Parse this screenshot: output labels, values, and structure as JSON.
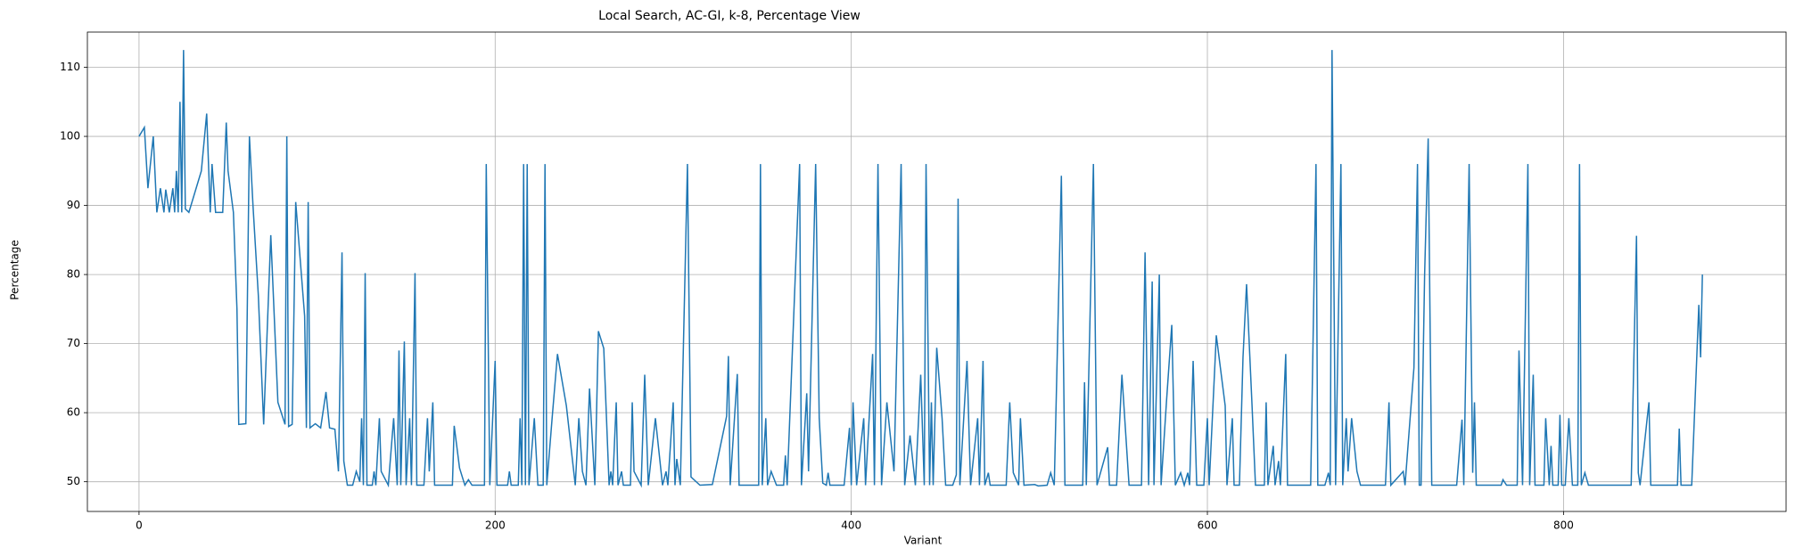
{
  "chart_data": {
    "type": "line",
    "title": "Local Search, AC-GI, k-8, Percentage View",
    "x_label": "Variant",
    "y_label": "Percentage",
    "xlim": [
      -29,
      925
    ],
    "ylim": [
      45.7,
      115.1
    ],
    "xticks": [
      0,
      200,
      400,
      600,
      800
    ],
    "yticks": [
      50,
      60,
      70,
      80,
      90,
      100,
      110
    ],
    "grid": true,
    "series": [
      {
        "color": "#1f77b4",
        "x": [
          0,
          3,
          5,
          8,
          10,
          12,
          14,
          15,
          17,
          19,
          20,
          21,
          22,
          23,
          24,
          25,
          26,
          28,
          35,
          38,
          40,
          41,
          43,
          47,
          49,
          50,
          53,
          55,
          56,
          60,
          62,
          64,
          67,
          70,
          74,
          78,
          82,
          83,
          84,
          86,
          88,
          93,
          94,
          95,
          96,
          99,
          102,
          105,
          107,
          110,
          112,
          114,
          115,
          117,
          120,
          122,
          124,
          125,
          126,
          127,
          128,
          131,
          132,
          133,
          135,
          136,
          140,
          143,
          145,
          146,
          147,
          149,
          150,
          152,
          153,
          155,
          156,
          160,
          162,
          163,
          165,
          166,
          170,
          176,
          177,
          180,
          183,
          185,
          187,
          194,
          195,
          197,
          200,
          201,
          207,
          208,
          209,
          213,
          214,
          215,
          216,
          217,
          218,
          219,
          222,
          224,
          227,
          228,
          229,
          232,
          235,
          240,
          245,
          247,
          249,
          251,
          253,
          256,
          258,
          261,
          264,
          265,
          266,
          268,
          269,
          271,
          272,
          276,
          277,
          278,
          282,
          284,
          286,
          290,
          294,
          296,
          297,
          300,
          301,
          302,
          304,
          308,
          310,
          315,
          322,
          330,
          331,
          332,
          336,
          337,
          348,
          349,
          350,
          352,
          353,
          355,
          358,
          362,
          363,
          364,
          371,
          372,
          375,
          376,
          380,
          382,
          384,
          386,
          387,
          388,
          396,
          399,
          400,
          401,
          403,
          407,
          408,
          412,
          413,
          415,
          417,
          420,
          424,
          428,
          430,
          433,
          436,
          439,
          441,
          442,
          444,
          445,
          446,
          448,
          451,
          453,
          457,
          459,
          460,
          461,
          465,
          467,
          471,
          472,
          474,
          475,
          477,
          478,
          487,
          489,
          491,
          494,
          495,
          497,
          503,
          505,
          510,
          512,
          514,
          518,
          520,
          530,
          531,
          532,
          536,
          538,
          544,
          545,
          549,
          552,
          556,
          563,
          565,
          567,
          569,
          570,
          573,
          574,
          577,
          580,
          582,
          585,
          587,
          589,
          590,
          592,
          594,
          598,
          600,
          601,
          605,
          610,
          611,
          614,
          615,
          618,
          620,
          622,
          625,
          627,
          632,
          633,
          634,
          637,
          638,
          640,
          641,
          644,
          645,
          658,
          661,
          662,
          666,
          668,
          669,
          670,
          672,
          675,
          676,
          678,
          679,
          681,
          684,
          686,
          700,
          702,
          703,
          710,
          711,
          716,
          718,
          719,
          720,
          722,
          724,
          726,
          740,
          743,
          744,
          747,
          749,
          750,
          751,
          765,
          766,
          768,
          774,
          775,
          777,
          780,
          781,
          783,
          784,
          789,
          790,
          792,
          793,
          794,
          797,
          798,
          799,
          801,
          803,
          805,
          808,
          809,
          810,
          812,
          814,
          838,
          841,
          842,
          843,
          847,
          848,
          849,
          864,
          865,
          866,
          872,
          876,
          877,
          878
        ],
        "values": [
          100,
          101.3,
          92.5,
          100,
          89,
          92.5,
          89,
          92.3,
          89,
          92.5,
          89,
          95,
          89,
          105,
          89,
          112.5,
          89.5,
          89,
          95,
          103.3,
          89,
          96,
          89,
          89,
          102,
          95,
          89,
          75,
          58.3,
          58.4,
          100,
          90,
          77,
          58.3,
          85.7,
          61.5,
          58.3,
          100,
          58,
          58.3,
          90.5,
          74,
          57.8,
          90.5,
          57.8,
          58.4,
          57.8,
          63,
          57.8,
          57.6,
          51.5,
          83.2,
          53,
          49.5,
          49.5,
          51.5,
          50,
          59.2,
          49.5,
          80.2,
          49.5,
          49.5,
          51.5,
          49.5,
          59.2,
          51.5,
          49.5,
          59.2,
          49.5,
          69,
          49.5,
          70.3,
          49.5,
          59.2,
          49.5,
          80.2,
          49.5,
          49.5,
          59.2,
          51.5,
          61.5,
          49.5,
          49.5,
          49.5,
          58.1,
          52,
          49.5,
          50.3,
          49.5,
          49.5,
          96,
          49.5,
          67.5,
          49.5,
          49.5,
          51.5,
          49.5,
          49.5,
          59.2,
          49.5,
          96,
          49.5,
          96,
          49.5,
          59.2,
          49.5,
          49.5,
          96,
          49.5,
          59.2,
          68.5,
          61,
          49.5,
          59.2,
          51.5,
          49.5,
          63.5,
          49.5,
          71.8,
          69.3,
          49.5,
          51.5,
          49.5,
          61.5,
          49.5,
          51.5,
          49.5,
          49.5,
          61.5,
          51.5,
          49.5,
          65.5,
          49.5,
          59.2,
          49.5,
          51.5,
          49.5,
          61.5,
          49.5,
          53.3,
          49.5,
          96,
          50.7,
          49.5,
          49.6,
          59.5,
          68.2,
          49.5,
          65.6,
          49.5,
          49.5,
          96,
          49.5,
          59.2,
          49.5,
          51.5,
          49.5,
          49.5,
          53.8,
          49.5,
          96,
          49.5,
          62.8,
          51.5,
          96,
          59.2,
          49.8,
          49.5,
          51.3,
          49.5,
          49.5,
          57.8,
          49.5,
          61.5,
          49.5,
          59.2,
          49.5,
          68.5,
          49.5,
          96,
          49.5,
          61.5,
          51.5,
          96,
          49.5,
          56.7,
          49.5,
          65.5,
          49.5,
          96,
          49.5,
          61.5,
          49.5,
          69.4,
          59.2,
          49.5,
          49.5,
          51,
          91,
          49.5,
          67.5,
          49.5,
          59.2,
          49.5,
          67.5,
          49.5,
          51.3,
          49.5,
          49.5,
          61.5,
          51.3,
          49.5,
          59.2,
          49.5,
          49.6,
          49.4,
          49.5,
          51.3,
          49.5,
          94.3,
          49.5,
          49.5,
          64.4,
          49.5,
          96,
          49.5,
          55,
          49.5,
          49.5,
          65.5,
          49.5,
          49.5,
          83.2,
          49.5,
          79,
          49.5,
          80,
          49.5,
          61.5,
          72.7,
          49.5,
          51.3,
          49.5,
          51.3,
          49.5,
          67.5,
          49.5,
          49.5,
          59.2,
          49.5,
          71.2,
          61,
          49.5,
          59.2,
          49.5,
          49.5,
          68,
          78.6,
          61.5,
          49.5,
          49.5,
          61.5,
          49.5,
          55.2,
          49.5,
          53,
          49.5,
          68.5,
          49.5,
          49.5,
          96,
          49.5,
          49.5,
          51.3,
          49.5,
          112.5,
          49.5,
          96,
          49.5,
          59.2,
          51.5,
          59.2,
          51.5,
          49.5,
          49.5,
          61.5,
          49.5,
          51.5,
          49.5,
          66.5,
          96,
          49.5,
          49.5,
          80,
          99.7,
          49.5,
          49.5,
          59,
          49.5,
          96,
          51.3,
          61.5,
          49.5,
          49.5,
          50.3,
          49.5,
          49.5,
          69,
          49.5,
          96,
          49.5,
          65.5,
          49.5,
          49.5,
          59.2,
          49.5,
          55.2,
          49.5,
          49.5,
          59.7,
          49.5,
          49.5,
          59.2,
          49.5,
          49.5,
          96,
          49.5,
          51.3,
          49.5,
          49.5,
          85.6,
          51.3,
          49.5,
          59.2,
          61.5,
          49.5,
          49.5,
          57.7,
          49.5,
          49.5,
          75.6,
          68,
          80
        ]
      }
    ]
  }
}
